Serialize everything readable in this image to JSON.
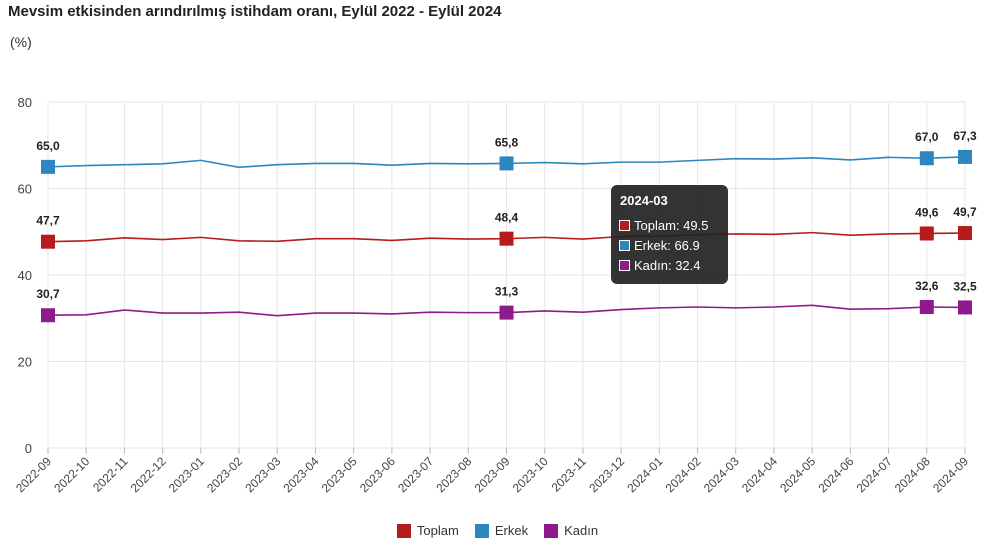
{
  "header": {
    "title": "Mevsim etkisinden arındırılmış istihdam oranı, Eylül 2022 - Eylül 2024",
    "unit": "(%)"
  },
  "chart_data": {
    "type": "line",
    "title": "Mevsim etkisinden arındırılmış istihdam oranı, Eylül 2022 - Eylül 2024",
    "ylabel": "(%)",
    "xlabel": "",
    "ylim": [
      0,
      80
    ],
    "yticks": [
      "0",
      "20",
      "40",
      "60",
      "80"
    ],
    "grid": true,
    "legend_position": "bottom",
    "categories": [
      "2022-09",
      "2022-10",
      "2022-11",
      "2022-12",
      "2023-01",
      "2023-02",
      "2023-03",
      "2023-04",
      "2023-05",
      "2023-06",
      "2023-07",
      "2023-08",
      "2023-09",
      "2023-10",
      "2023-11",
      "2023-12",
      "2024-01",
      "2024-02",
      "2024-03",
      "2024-04",
      "2024-05",
      "2024-06",
      "2024-07",
      "2024-08",
      "2024-09"
    ],
    "series": [
      {
        "name": "Toplam",
        "color": "#b71c1c",
        "values": [
          47.7,
          47.9,
          48.6,
          48.2,
          48.7,
          47.9,
          47.8,
          48.4,
          48.4,
          48.0,
          48.5,
          48.3,
          48.4,
          48.7,
          48.3,
          48.9,
          49.0,
          49.3,
          49.5,
          49.4,
          49.8,
          49.2,
          49.5,
          49.6,
          49.7
        ],
        "markers": [
          0,
          12,
          23,
          24
        ],
        "labels": [
          "47,7",
          "48,4",
          "49,6",
          "49,7"
        ]
      },
      {
        "name": "Erkek",
        "color": "#2e86c1",
        "values": [
          65.0,
          65.3,
          65.5,
          65.7,
          66.5,
          64.9,
          65.5,
          65.8,
          65.8,
          65.4,
          65.8,
          65.7,
          65.8,
          66.0,
          65.7,
          66.1,
          66.1,
          66.5,
          66.9,
          66.8,
          67.1,
          66.6,
          67.2,
          67.0,
          67.3
        ],
        "markers": [
          0,
          12,
          23,
          24
        ],
        "labels": [
          "65,0",
          "65,8",
          "67,0",
          "67,3"
        ]
      },
      {
        "name": "Kadın",
        "color": "#8e1a8e",
        "values": [
          30.7,
          30.8,
          31.9,
          31.2,
          31.2,
          31.4,
          30.6,
          31.2,
          31.2,
          31.0,
          31.4,
          31.3,
          31.3,
          31.7,
          31.4,
          32.0,
          32.4,
          32.6,
          32.4,
          32.6,
          33.0,
          32.1,
          32.2,
          32.6,
          32.5
        ],
        "markers": [
          0,
          12,
          23,
          24
        ],
        "labels": [
          "30,7",
          "31,3",
          "32,6",
          "32,5"
        ]
      }
    ]
  },
  "tooltip": {
    "title": "2024-03",
    "rows": [
      {
        "label": "Toplam: 49.5",
        "color": "#b71c1c"
      },
      {
        "label": "Erkek: 66.9",
        "color": "#2e86c1"
      },
      {
        "label": "Kadın: 32.4",
        "color": "#8e1a8e"
      }
    ]
  },
  "legend": [
    {
      "label": "Toplam",
      "color": "#b71c1c"
    },
    {
      "label": "Erkek",
      "color": "#2e86c1"
    },
    {
      "label": "Kadın",
      "color": "#8e1a8e"
    }
  ]
}
